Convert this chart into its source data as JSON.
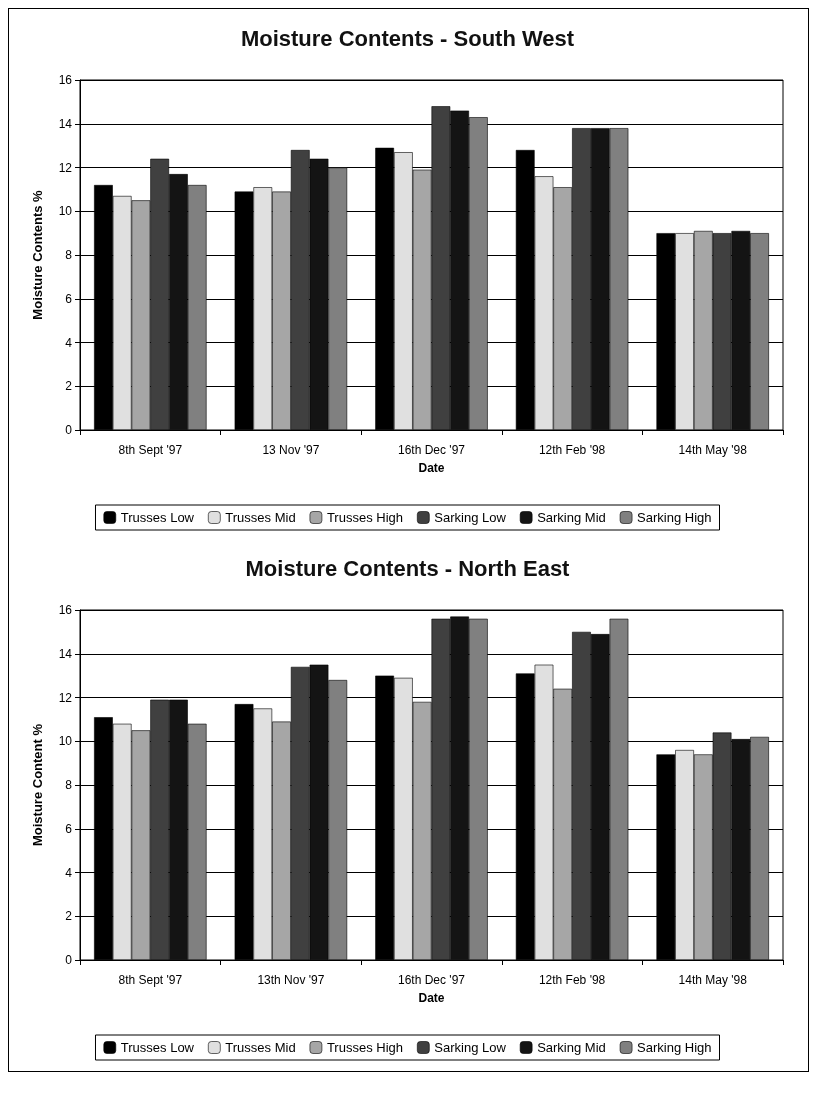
{
  "chart_data": [
    {
      "type": "bar",
      "title": "Moisture Contents - South West",
      "xlabel": "Date",
      "ylabel": "Moisture Contents %",
      "categories": [
        "8th Sept '97",
        "13 Nov '97",
        "16th Dec '97",
        "12th Feb '98",
        "14th May '98"
      ],
      "series": [
        {
          "name": "Trusses Low",
          "color": "#000000",
          "values": [
            11.2,
            10.9,
            12.9,
            12.8,
            9.0
          ]
        },
        {
          "name": "Trusses Mid",
          "color": "#e0e0e0",
          "values": [
            10.7,
            11.1,
            12.7,
            11.6,
            9.0
          ]
        },
        {
          "name": "Trusses High",
          "color": "#a6a6a6",
          "values": [
            10.5,
            10.9,
            11.9,
            11.1,
            9.1
          ]
        },
        {
          "name": "Sarking Low",
          "color": "#404040",
          "values": [
            12.4,
            12.8,
            14.8,
            13.8,
            9.0
          ]
        },
        {
          "name": "Sarking Mid",
          "color": "#141414",
          "values": [
            11.7,
            12.4,
            14.6,
            13.8,
            9.1
          ]
        },
        {
          "name": "Sarking High",
          "color": "#808080",
          "values": [
            11.2,
            12.0,
            14.3,
            13.8,
            9.0
          ]
        }
      ],
      "ylim": [
        0,
        16
      ],
      "yticks": [
        0,
        2,
        4,
        6,
        8,
        10,
        12,
        14,
        16
      ],
      "grid": "y",
      "legend": "bottom"
    },
    {
      "type": "bar",
      "title": "Moisture Contents - North East",
      "xlabel": "Date",
      "ylabel": "Moisture Content %",
      "categories": [
        "8th Sept '97",
        "13th Nov '97",
        "16th Dec '97",
        "12th Feb '98",
        "14th May '98"
      ],
      "series": [
        {
          "name": "Trusses Low",
          "color": "#000000",
          "values": [
            11.1,
            11.7,
            13.0,
            13.1,
            9.4
          ]
        },
        {
          "name": "Trusses Mid",
          "color": "#e0e0e0",
          "values": [
            10.8,
            11.5,
            12.9,
            13.5,
            9.6
          ]
        },
        {
          "name": "Trusses High",
          "color": "#a6a6a6",
          "values": [
            10.5,
            10.9,
            11.8,
            12.4,
            9.4
          ]
        },
        {
          "name": "Sarking Low",
          "color": "#404040",
          "values": [
            11.9,
            13.4,
            15.6,
            15.0,
            10.4
          ]
        },
        {
          "name": "Sarking Mid",
          "color": "#141414",
          "values": [
            11.9,
            13.5,
            15.7,
            14.9,
            10.1
          ]
        },
        {
          "name": "Sarking High",
          "color": "#808080",
          "values": [
            10.8,
            12.8,
            15.6,
            15.6,
            10.2
          ]
        }
      ],
      "ylim": [
        0,
        16
      ],
      "yticks": [
        0,
        2,
        4,
        6,
        8,
        10,
        12,
        14,
        16
      ],
      "grid": "y",
      "legend": "bottom"
    }
  ]
}
